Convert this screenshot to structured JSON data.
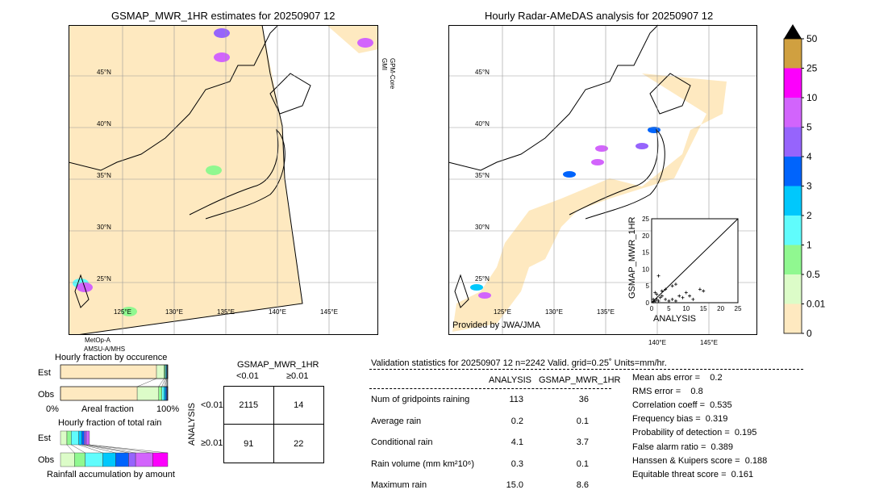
{
  "chart_data": [
    {
      "type": "heatmap",
      "title": "GSMAP_MWR_1HR estimates for 20250907 12",
      "lon_ticks": [
        "125°E",
        "130°E",
        "135°E",
        "140°E",
        "145°E"
      ],
      "lat_ticks": [
        "45°N",
        "40°N",
        "35°N",
        "30°N",
        "25°N"
      ],
      "side_label": "GPM-Core\nGMI",
      "bottom_label_1": "MetOp-A",
      "bottom_label_2": "AMSU-A/MHS"
    },
    {
      "type": "heatmap",
      "title": "Hourly Radar-AMeDAS analysis for 20250907 12",
      "lon_ticks": [
        "125°E",
        "130°E",
        "135°E",
        "140°E",
        "145°E"
      ],
      "lat_ticks": [
        "45°N",
        "40°N",
        "35°N",
        "30°N",
        "25°N"
      ],
      "credit": "Provided by JWA/JMA"
    },
    {
      "type": "scatter",
      "xlabel": "ANALYSIS",
      "ylabel": "GSMAP_MWR_1HR",
      "xlim": [
        0,
        25
      ],
      "ylim": [
        0,
        25
      ],
      "ticks": [
        "0",
        "5",
        "10",
        "15",
        "20",
        "25"
      ],
      "points": [
        [
          0.5,
          0.3
        ],
        [
          1,
          0.5
        ],
        [
          1.5,
          1
        ],
        [
          2,
          0.5
        ],
        [
          2.5,
          1.5
        ],
        [
          3,
          2
        ],
        [
          1,
          3
        ],
        [
          2,
          8
        ],
        [
          4,
          1
        ],
        [
          5,
          0.5
        ],
        [
          6,
          5
        ],
        [
          7,
          5.5
        ],
        [
          8,
          2
        ],
        [
          9,
          1.5
        ],
        [
          10,
          3
        ],
        [
          11,
          2
        ],
        [
          12,
          1
        ],
        [
          15,
          3.5
        ],
        [
          14,
          4
        ],
        [
          3,
          3.5
        ],
        [
          4,
          4
        ],
        [
          1.5,
          2.5
        ],
        [
          0.5,
          1
        ],
        [
          6,
          1
        ],
        [
          7,
          0.5
        ]
      ]
    },
    {
      "type": "bar",
      "title": "Hourly fraction by occurence",
      "categories": [
        "Est",
        "Obs"
      ],
      "xlabel": "Areal fraction",
      "xmin_label": "0%",
      "xmax_label": "100%"
    },
    {
      "type": "bar",
      "title": "Hourly fraction of total rain",
      "categories": [
        "Est",
        "Obs"
      ],
      "xlabel": "Rainfall accumulation by amount"
    }
  ],
  "colorbar": {
    "labels": [
      "0",
      "0.01",
      "0.5",
      "1",
      "2",
      "3",
      "4",
      "5",
      "10",
      "25",
      "50"
    ],
    "colors": [
      "#fee9c0",
      "#dcfcc8",
      "#90f890",
      "#60fcfc",
      "#00c8fc",
      "#0064fc",
      "#9664fc",
      "#d264fc",
      "#fc00fc",
      "#d0a040"
    ],
    "extend_color": "#000000"
  },
  "contingency": {
    "title": "GSMAP_MWR_1HR",
    "col_labels": [
      "<0.01",
      "≥0.01"
    ],
    "row_title": "ANALYSIS",
    "row_labels": [
      "<0.01",
      "≥0.01"
    ],
    "cells": [
      [
        "2115",
        "14"
      ],
      [
        "91",
        "22"
      ]
    ]
  },
  "stats": {
    "header": "Validation statistics for 20250907 12  n=2242 Valid. grid=0.25˚ Units=mm/hr.",
    "col_headers": [
      "ANALYSIS",
      "GSMAP_MWR_1HR"
    ],
    "rows": [
      {
        "label": "Num of gridpoints raining",
        "a": "113",
        "b": "36"
      },
      {
        "label": "Average rain",
        "a": "0.2",
        "b": "0.1"
      },
      {
        "label": "Conditional rain",
        "a": "4.1",
        "b": "3.7"
      },
      {
        "label": "Rain volume (mm km²10⁶)",
        "a": "0.3",
        "b": "0.1"
      },
      {
        "label": "Maximum rain",
        "a": "15.0",
        "b": "8.6"
      }
    ],
    "scores": [
      "Mean abs error =    0.2",
      "RMS error =    0.8",
      "Correlation coeff =  0.535",
      "Frequency bias =  0.319",
      "Probability of detection =  0.195",
      "False alarm ratio =  0.389",
      "Hanssen & Kuipers score =  0.188",
      "Equitable threat score =  0.161"
    ]
  }
}
